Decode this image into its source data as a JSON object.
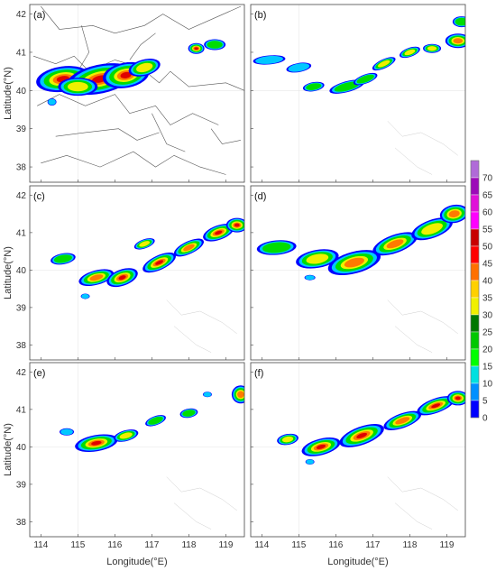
{
  "figure": {
    "panels": [
      {
        "id": "a",
        "label": "(a)",
        "kind": "radar",
        "show_ylabel": true,
        "show_xlabel": false
      },
      {
        "id": "b",
        "label": "(b)",
        "kind": "sim",
        "show_ylabel": false,
        "show_xlabel": false
      },
      {
        "id": "c",
        "label": "(c)",
        "kind": "sim",
        "show_ylabel": true,
        "show_xlabel": false
      },
      {
        "id": "d",
        "label": "(d)",
        "kind": "sim",
        "show_ylabel": false,
        "show_xlabel": false
      },
      {
        "id": "e",
        "label": "(e)",
        "kind": "sim",
        "show_ylabel": true,
        "show_xlabel": true
      },
      {
        "id": "f",
        "label": "(f)",
        "kind": "sim",
        "show_ylabel": false,
        "show_xlabel": true
      }
    ],
    "lat_ticks": [
      "42",
      "41",
      "40",
      "39",
      "38"
    ],
    "lon_ticks": [
      "114",
      "115",
      "116",
      "117",
      "118",
      "119"
    ],
    "ylabel": "Latitude(°N)",
    "xlabel": "Longitude(°E)",
    "colorbar": {
      "labels": [
        "70",
        "65",
        "60",
        "55",
        "50",
        "45",
        "40",
        "35",
        "30",
        "25",
        "20",
        "15",
        "10",
        "5",
        "0"
      ],
      "colors": [
        "#b06ad8",
        "#9c0ab8",
        "#e010d8",
        "#ff00ff",
        "#c80000",
        "#ff0000",
        "#ff7000",
        "#ffd000",
        "#f0f000",
        "#007800",
        "#00c800",
        "#00ff00",
        "#00e0e0",
        "#0090ff",
        "#0000ff"
      ]
    }
  }
}
